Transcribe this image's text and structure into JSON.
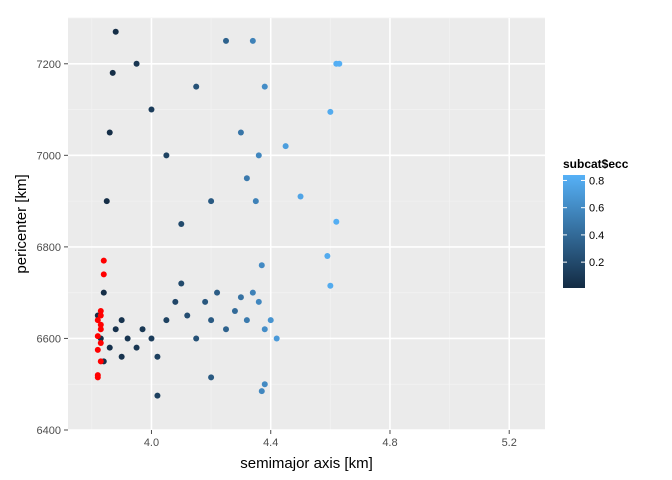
{
  "chart_data": {
    "type": "scatter",
    "xlabel": "semimajor axis [km]",
    "ylabel": "pericenter [km]",
    "xlim": [
      3.72,
      5.32
    ],
    "ylim": [
      6400,
      7300
    ],
    "x_ticks": [
      4.0,
      4.4,
      4.8,
      5.2
    ],
    "y_ticks": [
      6400,
      6600,
      6800,
      7000,
      7200
    ],
    "x_tick_labels": [
      "4.0",
      "4.4",
      "4.8",
      "5.2"
    ],
    "y_tick_labels": [
      "6400",
      "6600",
      "6800",
      "7000",
      "7200"
    ],
    "grid": true,
    "legend": {
      "title": "subcat$ecc",
      "placement": "right",
      "ticks": [
        0.2,
        0.4,
        0.6,
        0.8
      ],
      "tick_labels": [
        "0.2",
        "0.4",
        "0.6",
        "0.8"
      ],
      "range": [
        0.01,
        0.84
      ],
      "color_low": "#132b43",
      "color_high": "#56b1f7"
    },
    "colors": {
      "panel_bg": "#ebebeb",
      "grid_major": "#ffffff",
      "highlight": "#ff0000"
    },
    "series": [
      {
        "color_by": "ecc",
        "points": [
          [
            3.84,
            6700,
            0.03
          ],
          [
            3.85,
            6900,
            0.03
          ],
          [
            3.86,
            7050,
            0.03
          ],
          [
            3.87,
            7180,
            0.03
          ],
          [
            3.88,
            7270,
            0.03
          ],
          [
            3.82,
            6650,
            0.03
          ],
          [
            3.83,
            6600,
            0.04
          ],
          [
            3.84,
            6550,
            0.04
          ],
          [
            3.86,
            6580,
            0.05
          ],
          [
            3.88,
            6620,
            0.05
          ],
          [
            3.9,
            6640,
            0.06
          ],
          [
            3.92,
            6600,
            0.07
          ],
          [
            3.95,
            6580,
            0.08
          ],
          [
            3.97,
            6620,
            0.09
          ],
          [
            4.0,
            6600,
            0.12
          ],
          [
            4.02,
            6560,
            0.14
          ],
          [
            4.05,
            6640,
            0.15
          ],
          [
            4.08,
            6680,
            0.18
          ],
          [
            4.1,
            6720,
            0.2
          ],
          [
            4.12,
            6650,
            0.22
          ],
          [
            4.15,
            6600,
            0.25
          ],
          [
            4.18,
            6680,
            0.28
          ],
          [
            4.2,
            6640,
            0.3
          ],
          [
            4.22,
            6700,
            0.32
          ],
          [
            4.25,
            6620,
            0.35
          ],
          [
            4.28,
            6660,
            0.4
          ],
          [
            4.3,
            6690,
            0.45
          ],
          [
            4.32,
            6640,
            0.5
          ],
          [
            4.34,
            6700,
            0.55
          ],
          [
            4.36,
            6680,
            0.58
          ],
          [
            4.38,
            6620,
            0.62
          ],
          [
            4.4,
            6640,
            0.66
          ],
          [
            4.42,
            6600,
            0.7
          ],
          [
            4.37,
            6760,
            0.6
          ],
          [
            4.35,
            6900,
            0.55
          ],
          [
            4.36,
            7000,
            0.58
          ],
          [
            4.38,
            7150,
            0.62
          ],
          [
            4.34,
            7250,
            0.55
          ],
          [
            4.3,
            7050,
            0.47
          ],
          [
            4.32,
            6950,
            0.5
          ],
          [
            4.2,
            6900,
            0.3
          ],
          [
            4.1,
            6850,
            0.2
          ],
          [
            4.05,
            7000,
            0.15
          ],
          [
            4.0,
            7100,
            0.12
          ],
          [
            3.95,
            7200,
            0.08
          ],
          [
            4.15,
            7150,
            0.25
          ],
          [
            4.25,
            7250,
            0.35
          ],
          [
            4.45,
            7020,
            0.72
          ],
          [
            4.5,
            6910,
            0.76
          ],
          [
            4.6,
            7095,
            0.8
          ],
          [
            4.62,
            7200,
            0.82
          ],
          [
            4.63,
            7200,
            0.83
          ],
          [
            4.62,
            6855,
            0.82
          ],
          [
            4.59,
            6780,
            0.8
          ],
          [
            4.6,
            6715,
            0.8
          ],
          [
            4.38,
            6500,
            0.6
          ],
          [
            4.37,
            6485,
            0.58
          ],
          [
            4.02,
            6475,
            0.14
          ],
          [
            4.2,
            6515,
            0.3
          ],
          [
            3.9,
            6560,
            0.06
          ]
        ]
      },
      {
        "name": "",
        "color": "#ff0000",
        "points": [
          [
            3.82,
            6520
          ],
          [
            3.82,
            6515
          ],
          [
            3.83,
            6550
          ],
          [
            3.82,
            6575
          ],
          [
            3.83,
            6590
          ],
          [
            3.82,
            6605
          ],
          [
            3.83,
            6620
          ],
          [
            3.82,
            6640
          ],
          [
            3.83,
            6650
          ],
          [
            3.83,
            6660
          ],
          [
            3.84,
            6740
          ],
          [
            3.84,
            6770
          ],
          [
            3.83,
            6630
          ]
        ]
      }
    ]
  }
}
